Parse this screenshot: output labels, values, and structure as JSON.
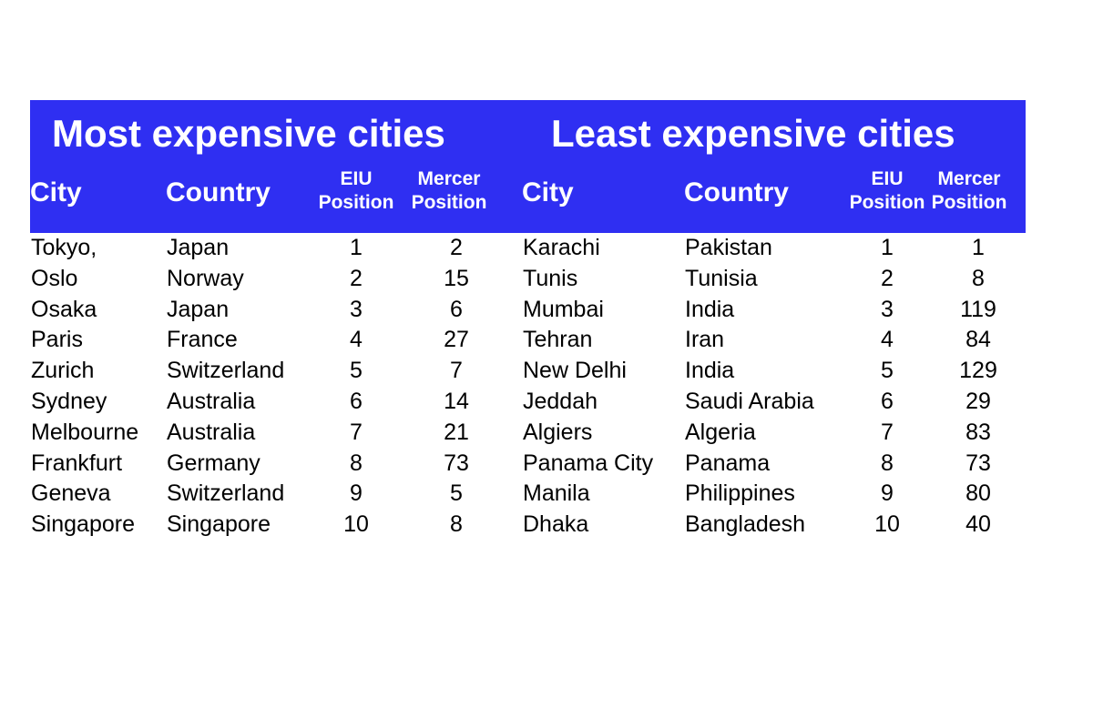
{
  "chart_data": {
    "type": "table",
    "tables": [
      {
        "title": "Most expensive cities",
        "columns": [
          "City",
          "Country",
          "EIU Position",
          "Mercer Position"
        ],
        "rows": [
          [
            "Tokyo,",
            "Japan",
            "1",
            "2"
          ],
          [
            "Oslo",
            "Norway",
            "2",
            "15"
          ],
          [
            "Osaka",
            "Japan",
            "3",
            "6"
          ],
          [
            "Paris",
            "France",
            "4",
            "27"
          ],
          [
            "Zurich",
            "Switzerland",
            "5",
            "7"
          ],
          [
            "Sydney",
            "Australia",
            "6",
            "14"
          ],
          [
            "Melbourne",
            "Australia",
            "7",
            "21"
          ],
          [
            "Frankfurt",
            "Germany",
            "8",
            "73"
          ],
          [
            "Geneva",
            "Switzerland",
            "9",
            "5"
          ],
          [
            "Singapore",
            "Singapore",
            "10",
            "8"
          ]
        ]
      },
      {
        "title": "Least expensive cities",
        "columns": [
          "City",
          "Country",
          "EIU Position",
          "Mercer Position"
        ],
        "rows": [
          [
            "Karachi",
            "Pakistan",
            "1",
            "1"
          ],
          [
            "Tunis",
            "Tunisia",
            "2",
            "8"
          ],
          [
            "Mumbai",
            "India",
            "3",
            "119"
          ],
          [
            "Tehran",
            "Iran",
            "4",
            "84"
          ],
          [
            "New Delhi",
            "India",
            "5",
            "129"
          ],
          [
            "Jeddah",
            "Saudi Arabia",
            "6",
            "29"
          ],
          [
            "Algiers",
            "Algeria",
            "7",
            "83"
          ],
          [
            "Panama City",
            "Panama",
            "8",
            "73"
          ],
          [
            "Manila",
            "Philippines",
            "9",
            "80"
          ],
          [
            "Dhaka",
            "Bangladesh",
            "10",
            "40"
          ]
        ]
      }
    ],
    "header_color": "#2f2ff2",
    "header_text_color": "#ffffff"
  }
}
